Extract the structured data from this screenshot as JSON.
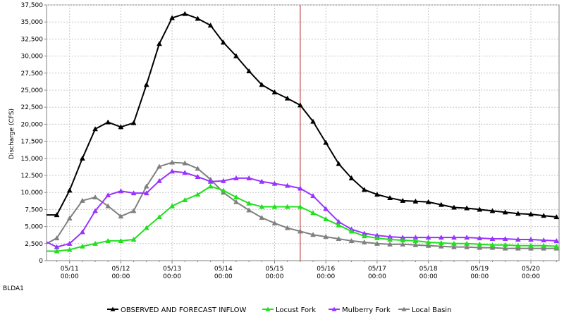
{
  "station": "BLDA1",
  "chart_data": {
    "type": "line",
    "ylabel": "Discharge (CFS)",
    "ylim": [
      0,
      37500
    ],
    "yticks": [
      0,
      2500,
      5000,
      7500,
      10000,
      12500,
      15000,
      17500,
      20000,
      22500,
      25000,
      27500,
      30000,
      32500,
      35000,
      37500
    ],
    "ytick_labels": [
      "0",
      "2,500",
      "5,000",
      "7,500",
      "10,000",
      "12,500",
      "15,000",
      "17,500",
      "20,000",
      "22,500",
      "25,000",
      "27,500",
      "30,000",
      "32,500",
      "35,000",
      "37,500"
    ],
    "xlim": [
      10.55,
      20.55
    ],
    "xticks": [
      11,
      12,
      13,
      14,
      15,
      16,
      17,
      18,
      19,
      20
    ],
    "xtick_labels": [
      [
        "05/11",
        "00:00"
      ],
      [
        "05/12",
        "00:00"
      ],
      [
        "05/13",
        "00:00"
      ],
      [
        "05/14",
        "00:00"
      ],
      [
        "05/15",
        "00:00"
      ],
      [
        "05/16",
        "00:00"
      ],
      [
        "05/17",
        "00:00"
      ],
      [
        "05/18",
        "00:00"
      ],
      [
        "05/19",
        "00:00"
      ],
      [
        "05/20",
        "00:00"
      ]
    ],
    "forecast_start": 15.5,
    "grid": true,
    "legend_position": "bottom",
    "series": [
      {
        "name": "OBSERVED AND FORECAST INFLOW",
        "color": "#000000",
        "x": [
          10.5,
          10.75,
          11,
          11.25,
          11.5,
          11.75,
          12,
          12.25,
          12.5,
          12.75,
          13,
          13.25,
          13.5,
          13.75,
          14,
          14.25,
          14.5,
          14.75,
          15,
          15.25,
          15.5,
          15.75,
          16,
          16.25,
          16.5,
          16.75,
          17,
          17.25,
          17.5,
          17.75,
          18,
          18.25,
          18.5,
          18.75,
          19,
          19.25,
          19.5,
          19.75,
          20,
          20.25,
          20.5
        ],
        "y": [
          6700,
          6700,
          10300,
          15000,
          19300,
          20300,
          19600,
          20200,
          25800,
          31800,
          35600,
          36200,
          35500,
          34500,
          32000,
          30000,
          27800,
          25800,
          24700,
          23800,
          22800,
          20400,
          17300,
          14200,
          12100,
          10400,
          9700,
          9200,
          8800,
          8700,
          8600,
          8200,
          7800,
          7700,
          7500,
          7300,
          7100,
          6900,
          6800,
          6600,
          6400
        ]
      },
      {
        "name": "Locust Fork",
        "color": "#22e01e",
        "x": [
          10.5,
          10.75,
          11,
          11.25,
          11.5,
          11.75,
          12,
          12.25,
          12.5,
          12.75,
          13,
          13.25,
          13.5,
          13.75,
          14,
          14.25,
          14.5,
          14.75,
          15,
          15.25,
          15.5,
          15.75,
          16,
          16.25,
          16.5,
          16.75,
          17,
          17.25,
          17.5,
          17.75,
          18,
          18.25,
          18.5,
          18.75,
          19,
          19.25,
          19.5,
          19.75,
          20,
          20.25,
          20.5
        ],
        "y": [
          1400,
          1400,
          1600,
          2100,
          2500,
          2900,
          2900,
          3100,
          4800,
          6400,
          8000,
          8900,
          9700,
          10900,
          10300,
          9300,
          8400,
          7900,
          7900,
          7900,
          7900,
          7000,
          6100,
          5200,
          4300,
          3600,
          3300,
          3100,
          3000,
          2900,
          2700,
          2600,
          2500,
          2500,
          2400,
          2300,
          2300,
          2200,
          2200,
          2200,
          2100
        ]
      },
      {
        "name": "Mulberry Fork",
        "color": "#9933ff",
        "x": [
          10.5,
          10.75,
          11,
          11.25,
          11.5,
          11.75,
          12,
          12.25,
          12.5,
          12.75,
          13,
          13.25,
          13.5,
          13.75,
          14,
          14.25,
          14.5,
          14.75,
          15,
          15.25,
          15.5,
          15.75,
          16,
          16.25,
          16.5,
          16.75,
          17,
          17.25,
          17.5,
          17.75,
          18,
          18.25,
          18.5,
          18.75,
          19,
          19.25,
          19.5,
          19.75,
          20,
          20.25,
          20.5
        ],
        "y": [
          2900,
          2000,
          2500,
          4200,
          7300,
          9600,
          10200,
          9900,
          9900,
          11700,
          13100,
          12900,
          12300,
          11600,
          11700,
          12100,
          12100,
          11600,
          11300,
          11000,
          10600,
          9500,
          7600,
          5700,
          4600,
          4000,
          3700,
          3500,
          3400,
          3400,
          3400,
          3400,
          3400,
          3400,
          3300,
          3200,
          3200,
          3100,
          3100,
          3000,
          2900
        ]
      },
      {
        "name": "Local Basin",
        "color": "#808080",
        "x": [
          10.5,
          10.75,
          11,
          11.25,
          11.5,
          11.75,
          12,
          12.25,
          12.5,
          12.75,
          13,
          13.25,
          13.5,
          13.75,
          14,
          14.25,
          14.5,
          14.75,
          15,
          15.25,
          15.5,
          15.75,
          16,
          16.25,
          16.5,
          16.75,
          17,
          17.25,
          17.5,
          17.75,
          18,
          18.25,
          18.5,
          18.75,
          19,
          19.25,
          19.5,
          19.75,
          20,
          20.25,
          20.5
        ],
        "y": [
          2300,
          3300,
          6200,
          8800,
          9300,
          8000,
          6500,
          7300,
          10900,
          13800,
          14400,
          14300,
          13500,
          11900,
          10000,
          8600,
          7400,
          6300,
          5500,
          4800,
          4300,
          3800,
          3500,
          3200,
          2900,
          2700,
          2500,
          2400,
          2400,
          2300,
          2200,
          2100,
          2000,
          2000,
          1900,
          1900,
          1800,
          1800,
          1800,
          1800,
          1800
        ]
      }
    ]
  }
}
